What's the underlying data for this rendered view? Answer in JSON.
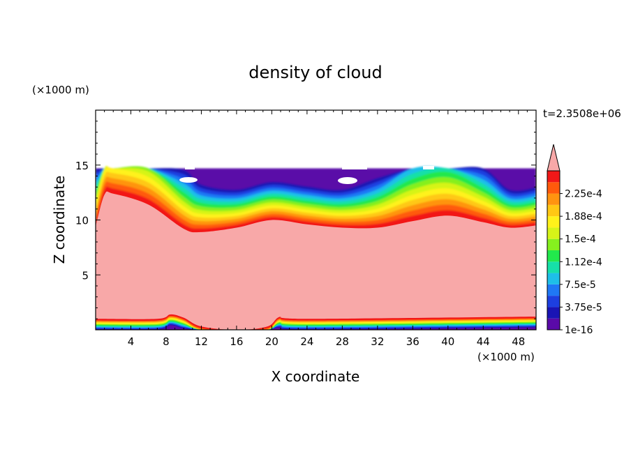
{
  "chart_data": {
    "type": "heatmap",
    "title": "density of cloud",
    "xlabel": "X coordinate",
    "ylabel": "Z coordinate",
    "x_unit_label": "(×1000 m)",
    "y_unit_label": "(×1000 m)",
    "time_label": "t=2.3508e+06",
    "xlim": [
      0,
      50
    ],
    "ylim": [
      0,
      20
    ],
    "x_ticks": [
      4,
      8,
      12,
      16,
      20,
      24,
      28,
      32,
      36,
      40,
      44,
      48
    ],
    "y_ticks": [
      5,
      10,
      15
    ],
    "colorbar": {
      "labels": [
        "1e-16",
        "3.75e-5",
        "7.5e-5",
        "1.12e-4",
        "1.5e-4",
        "1.88e-4",
        "2.25e-4"
      ],
      "colors": [
        "#5a0aa8",
        "#1a14b4",
        "#1d3fe0",
        "#1f78f5",
        "#1ebfe8",
        "#16e0a8",
        "#22e84c",
        "#86f01e",
        "#d6f418",
        "#fff21a",
        "#ffc814",
        "#ff9410",
        "#ff5a0c",
        "#f21818"
      ],
      "overflow_color": "#f8a8a8",
      "extend": "max"
    },
    "cloud_layer": {
      "top_height": 14.7,
      "dense_core_color": "#f8a8a8",
      "dense_core_top_at_x": [
        [
          0,
          9.4
        ],
        [
          1,
          12.3
        ],
        [
          2,
          12.4
        ],
        [
          6,
          11.4
        ],
        [
          10,
          9.2
        ],
        [
          12,
          8.9
        ],
        [
          16,
          9.3
        ],
        [
          20,
          10.0
        ],
        [
          24,
          9.6
        ],
        [
          28,
          9.3
        ],
        [
          32,
          9.3
        ],
        [
          36,
          9.9
        ],
        [
          40,
          10.4
        ],
        [
          44,
          9.8
        ],
        [
          47,
          9.3
        ],
        [
          50,
          9.5
        ]
      ],
      "dense_core_bottom_at_x": [
        [
          0,
          1.0
        ],
        [
          7,
          1.0
        ],
        [
          8.5,
          1.4
        ],
        [
          10,
          1.1
        ],
        [
          12,
          0.3
        ],
        [
          16,
          0.0
        ],
        [
          19.5,
          0.3
        ],
        [
          21,
          1.2
        ],
        [
          24,
          1.0
        ],
        [
          50,
          1.2
        ]
      ]
    }
  }
}
